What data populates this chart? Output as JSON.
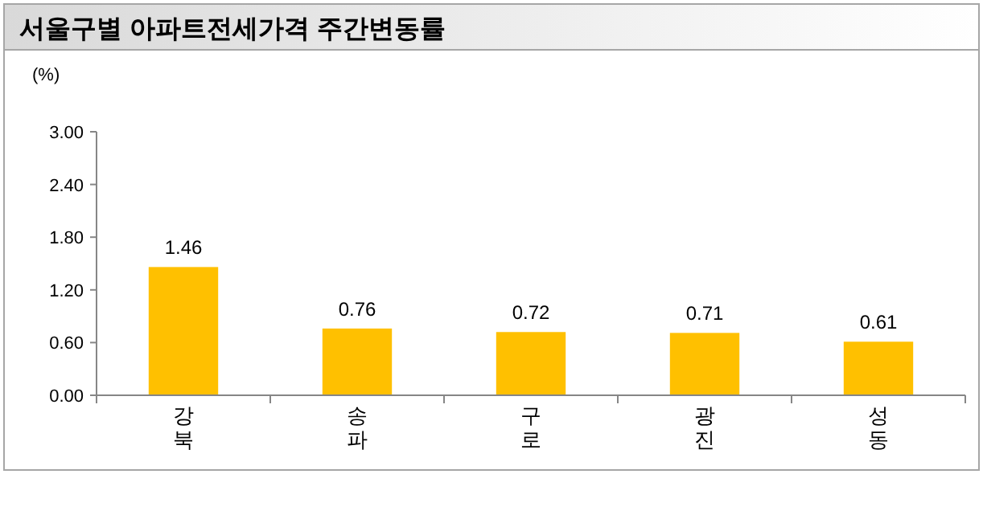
{
  "chart_data": {
    "type": "bar",
    "title": "서울구별 아파트전세가격 주간변동률",
    "ylabel": "(%)",
    "categories": [
      "강북",
      "송파",
      "구로",
      "광진",
      "성동"
    ],
    "values": [
      1.46,
      0.76,
      0.72,
      0.71,
      0.61
    ],
    "color": "#ffc000",
    "ylim": [
      0,
      3
    ],
    "yticks": [
      {
        "value": 0,
        "label": "0.00"
      },
      {
        "value": 0.6,
        "label": "0.60"
      },
      {
        "value": 1.2,
        "label": "1.20"
      },
      {
        "value": 1.8,
        "label": "1.80"
      },
      {
        "value": 2.4,
        "label": "2.40"
      },
      {
        "value": 3,
        "label": "3.00"
      }
    ],
    "data_labels": true,
    "grid": false
  }
}
